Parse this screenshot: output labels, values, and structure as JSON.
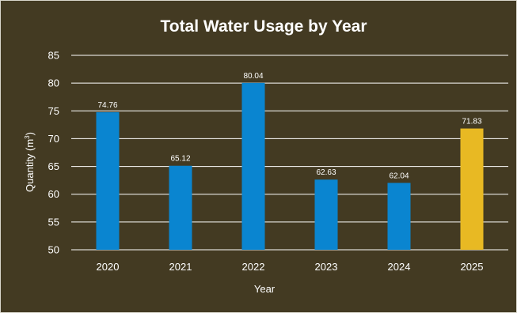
{
  "chart_data": {
    "type": "bar",
    "title": "Total Water Usage by Year",
    "xlabel": "Year",
    "ylabel": "Quantity (m",
    "ylabel_sup": "3",
    "ylabel_close": ")",
    "categories": [
      "2020",
      "2021",
      "2022",
      "2023",
      "2024",
      "2025"
    ],
    "values": [
      74.76,
      65.12,
      80.04,
      62.63,
      62.04,
      71.83
    ],
    "data_labels": [
      "74.76",
      "65.12",
      "80.04",
      "62.63",
      "62.04",
      "71.83"
    ],
    "ylim": [
      50,
      85
    ],
    "yticks": [
      50,
      55,
      60,
      65,
      70,
      75,
      80,
      85
    ],
    "grid": true,
    "legend": "none",
    "bar_colors": [
      "#0a85d0",
      "#0a85d0",
      "#0a85d0",
      "#0a85d0",
      "#0a85d0",
      "#e8b923"
    ]
  },
  "colors": {
    "background": "#433a22",
    "text": "#ffffff",
    "gridline": "#ffffff",
    "frame": "#d9d6cc"
  }
}
